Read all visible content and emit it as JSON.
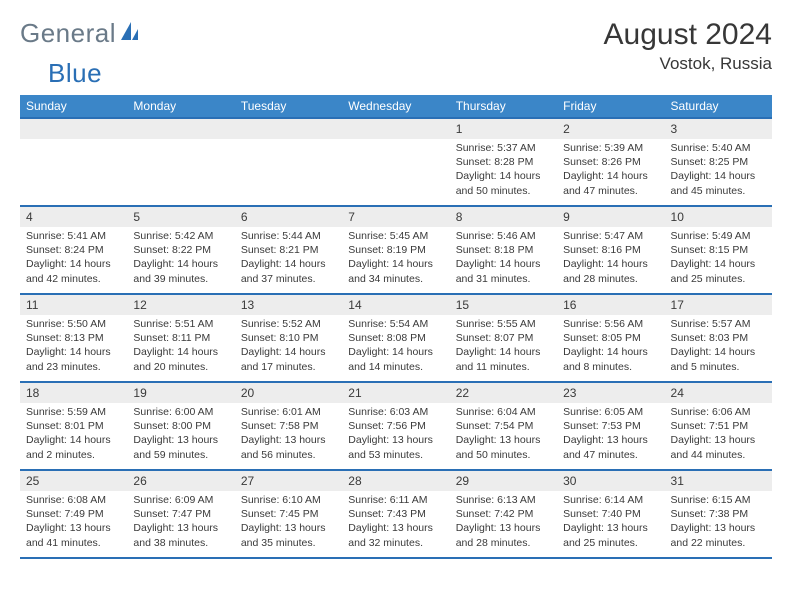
{
  "brand": {
    "part1": "General",
    "part2": "Blue"
  },
  "title": "August 2024",
  "location": "Vostok, Russia",
  "colors": {
    "header_bg": "#3b86c8",
    "header_text": "#ffffff",
    "rule": "#2a6fb5",
    "daynum_bg": "#ededed",
    "body_text": "#3a3a3a",
    "logo_gray": "#6a7a88",
    "logo_blue": "#2a6fb5",
    "page_bg": "#ffffff"
  },
  "typography": {
    "title_fontsize": 30,
    "location_fontsize": 17,
    "weekday_fontsize": 12,
    "daynum_fontsize": 12,
    "body_fontsize": 10.5,
    "font_family": "Arial"
  },
  "calendar": {
    "type": "table",
    "weekdays": [
      "Sunday",
      "Monday",
      "Tuesday",
      "Wednesday",
      "Thursday",
      "Friday",
      "Saturday"
    ],
    "weeks": [
      [
        null,
        null,
        null,
        null,
        {
          "day": "1",
          "sunrise": "5:37 AM",
          "sunset": "8:28 PM",
          "daylight": "14 hours and 50 minutes."
        },
        {
          "day": "2",
          "sunrise": "5:39 AM",
          "sunset": "8:26 PM",
          "daylight": "14 hours and 47 minutes."
        },
        {
          "day": "3",
          "sunrise": "5:40 AM",
          "sunset": "8:25 PM",
          "daylight": "14 hours and 45 minutes."
        }
      ],
      [
        {
          "day": "4",
          "sunrise": "5:41 AM",
          "sunset": "8:24 PM",
          "daylight": "14 hours and 42 minutes."
        },
        {
          "day": "5",
          "sunrise": "5:42 AM",
          "sunset": "8:22 PM",
          "daylight": "14 hours and 39 minutes."
        },
        {
          "day": "6",
          "sunrise": "5:44 AM",
          "sunset": "8:21 PM",
          "daylight": "14 hours and 37 minutes."
        },
        {
          "day": "7",
          "sunrise": "5:45 AM",
          "sunset": "8:19 PM",
          "daylight": "14 hours and 34 minutes."
        },
        {
          "day": "8",
          "sunrise": "5:46 AM",
          "sunset": "8:18 PM",
          "daylight": "14 hours and 31 minutes."
        },
        {
          "day": "9",
          "sunrise": "5:47 AM",
          "sunset": "8:16 PM",
          "daylight": "14 hours and 28 minutes."
        },
        {
          "day": "10",
          "sunrise": "5:49 AM",
          "sunset": "8:15 PM",
          "daylight": "14 hours and 25 minutes."
        }
      ],
      [
        {
          "day": "11",
          "sunrise": "5:50 AM",
          "sunset": "8:13 PM",
          "daylight": "14 hours and 23 minutes."
        },
        {
          "day": "12",
          "sunrise": "5:51 AM",
          "sunset": "8:11 PM",
          "daylight": "14 hours and 20 minutes."
        },
        {
          "day": "13",
          "sunrise": "5:52 AM",
          "sunset": "8:10 PM",
          "daylight": "14 hours and 17 minutes."
        },
        {
          "day": "14",
          "sunrise": "5:54 AM",
          "sunset": "8:08 PM",
          "daylight": "14 hours and 14 minutes."
        },
        {
          "day": "15",
          "sunrise": "5:55 AM",
          "sunset": "8:07 PM",
          "daylight": "14 hours and 11 minutes."
        },
        {
          "day": "16",
          "sunrise": "5:56 AM",
          "sunset": "8:05 PM",
          "daylight": "14 hours and 8 minutes."
        },
        {
          "day": "17",
          "sunrise": "5:57 AM",
          "sunset": "8:03 PM",
          "daylight": "14 hours and 5 minutes."
        }
      ],
      [
        {
          "day": "18",
          "sunrise": "5:59 AM",
          "sunset": "8:01 PM",
          "daylight": "14 hours and 2 minutes."
        },
        {
          "day": "19",
          "sunrise": "6:00 AM",
          "sunset": "8:00 PM",
          "daylight": "13 hours and 59 minutes."
        },
        {
          "day": "20",
          "sunrise": "6:01 AM",
          "sunset": "7:58 PM",
          "daylight": "13 hours and 56 minutes."
        },
        {
          "day": "21",
          "sunrise": "6:03 AM",
          "sunset": "7:56 PM",
          "daylight": "13 hours and 53 minutes."
        },
        {
          "day": "22",
          "sunrise": "6:04 AM",
          "sunset": "7:54 PM",
          "daylight": "13 hours and 50 minutes."
        },
        {
          "day": "23",
          "sunrise": "6:05 AM",
          "sunset": "7:53 PM",
          "daylight": "13 hours and 47 minutes."
        },
        {
          "day": "24",
          "sunrise": "6:06 AM",
          "sunset": "7:51 PM",
          "daylight": "13 hours and 44 minutes."
        }
      ],
      [
        {
          "day": "25",
          "sunrise": "6:08 AM",
          "sunset": "7:49 PM",
          "daylight": "13 hours and 41 minutes."
        },
        {
          "day": "26",
          "sunrise": "6:09 AM",
          "sunset": "7:47 PM",
          "daylight": "13 hours and 38 minutes."
        },
        {
          "day": "27",
          "sunrise": "6:10 AM",
          "sunset": "7:45 PM",
          "daylight": "13 hours and 35 minutes."
        },
        {
          "day": "28",
          "sunrise": "6:11 AM",
          "sunset": "7:43 PM",
          "daylight": "13 hours and 32 minutes."
        },
        {
          "day": "29",
          "sunrise": "6:13 AM",
          "sunset": "7:42 PM",
          "daylight": "13 hours and 28 minutes."
        },
        {
          "day": "30",
          "sunrise": "6:14 AM",
          "sunset": "7:40 PM",
          "daylight": "13 hours and 25 minutes."
        },
        {
          "day": "31",
          "sunrise": "6:15 AM",
          "sunset": "7:38 PM",
          "daylight": "13 hours and 22 minutes."
        }
      ]
    ]
  },
  "labels": {
    "sunrise_prefix": "Sunrise: ",
    "sunset_prefix": "Sunset: ",
    "daylight_prefix": "Daylight: "
  }
}
